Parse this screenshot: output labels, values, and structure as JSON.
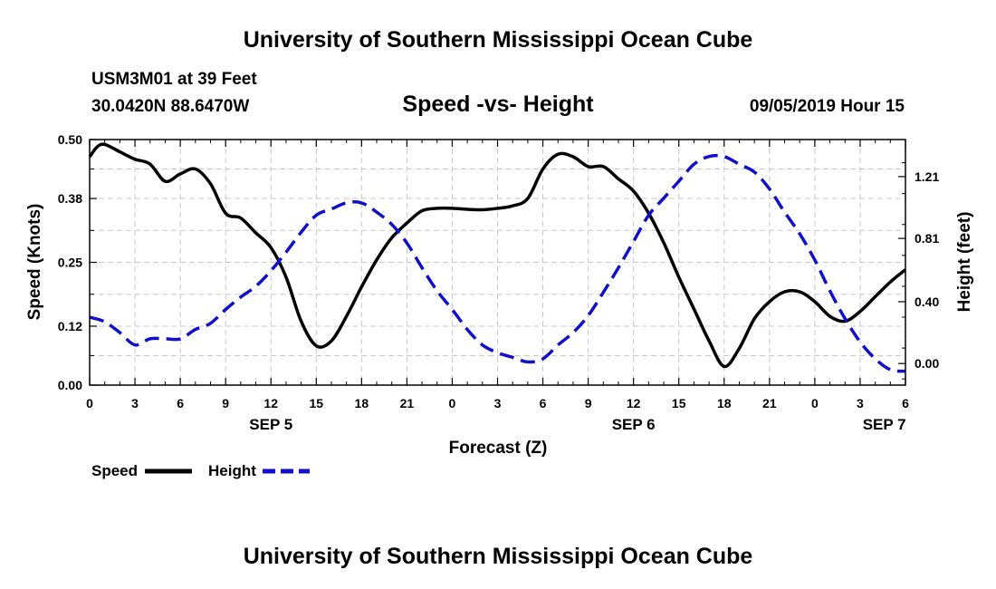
{
  "header": {
    "title": "University of Southern Mississippi Ocean Cube",
    "station": "USM3M01 at 39 Feet",
    "coords": "30.0420N 88.6470W",
    "datetime": "09/05/2019 Hour 15"
  },
  "footer": {
    "title": "University of Southern Mississippi Ocean Cube"
  },
  "colors": {
    "speed": "#000000",
    "height": "#1010c8",
    "grid": "#c8c8c8"
  },
  "chart_data": {
    "type": "line",
    "title": "Speed -vs- Height",
    "xlabel": "Forecast (Z)",
    "ylabel": "Speed (Knots)",
    "y2label": "Height (feet)",
    "xlim": [
      0,
      54
    ],
    "ylim": [
      0,
      0.5
    ],
    "y2lim": [
      -0.14,
      1.45
    ],
    "x_ticks": [
      0,
      3,
      6,
      9,
      12,
      15,
      18,
      21,
      24,
      27,
      30,
      33,
      36,
      39,
      42,
      45,
      48,
      51,
      54
    ],
    "x_tick_labels": [
      "0",
      "3",
      "6",
      "9",
      "12",
      "15",
      "18",
      "21",
      "0",
      "3",
      "6",
      "9",
      "12",
      "15",
      "18",
      "21",
      "0",
      "3",
      "6"
    ],
    "date_labels": [
      {
        "x": 12,
        "label": "SEP 5"
      },
      {
        "x": 36,
        "label": "SEP 6"
      },
      {
        "x": 52.6,
        "label": "SEP 7"
      }
    ],
    "y_ticks": [
      0.0,
      0.12,
      0.25,
      0.38,
      0.5
    ],
    "y_tick_labels": [
      "0.00",
      "0.12",
      "0.25",
      "0.38",
      "0.50"
    ],
    "y2_ticks": [
      0.0,
      0.4,
      0.81,
      1.21
    ],
    "y2_tick_labels": [
      "0.00",
      "0.40",
      "0.81",
      "1.21"
    ],
    "grid": true,
    "legend": {
      "position": "bottom-left",
      "entries": [
        "Speed",
        "Height"
      ]
    },
    "series": [
      {
        "name": "Speed",
        "axis": "left",
        "style": "solid",
        "x": [
          0,
          0.5,
          1,
          2,
          3,
          4,
          5,
          6,
          7,
          8,
          9,
          10,
          11,
          12,
          13,
          14,
          15,
          16,
          17,
          18,
          19,
          20,
          21,
          22,
          23,
          24,
          25,
          26,
          27,
          28,
          29,
          30,
          31,
          32,
          33,
          34,
          35,
          36,
          37,
          38,
          39,
          40,
          41,
          42,
          43,
          44,
          45,
          46,
          47,
          48,
          49,
          50,
          51,
          52,
          53,
          54
        ],
        "values": [
          0.465,
          0.485,
          0.49,
          0.475,
          0.46,
          0.45,
          0.415,
          0.43,
          0.44,
          0.41,
          0.35,
          0.34,
          0.31,
          0.28,
          0.22,
          0.13,
          0.08,
          0.09,
          0.14,
          0.2,
          0.255,
          0.3,
          0.33,
          0.355,
          0.36,
          0.36,
          0.358,
          0.357,
          0.36,
          0.365,
          0.38,
          0.44,
          0.47,
          0.465,
          0.445,
          0.445,
          0.42,
          0.395,
          0.35,
          0.29,
          0.22,
          0.155,
          0.09,
          0.038,
          0.075,
          0.135,
          0.17,
          0.19,
          0.19,
          0.17,
          0.14,
          0.13,
          0.15,
          0.18,
          0.21,
          0.235
        ]
      },
      {
        "name": "Height",
        "axis": "right",
        "style": "dashed",
        "x": [
          0,
          1,
          2,
          3,
          4,
          5,
          6,
          7,
          8,
          9,
          10,
          11,
          12,
          13,
          14,
          15,
          16,
          17,
          18,
          19,
          20,
          21,
          22,
          23,
          24,
          25,
          26,
          27,
          28,
          29,
          30,
          31,
          32,
          33,
          34,
          35,
          36,
          37,
          38,
          39,
          40,
          41,
          42,
          43,
          44,
          45,
          46,
          47,
          48,
          49,
          50,
          51,
          52,
          53,
          54
        ],
        "values": [
          0.3,
          0.27,
          0.2,
          0.12,
          0.16,
          0.16,
          0.16,
          0.22,
          0.26,
          0.35,
          0.43,
          0.5,
          0.6,
          0.72,
          0.85,
          0.96,
          1.0,
          1.04,
          1.04,
          0.98,
          0.9,
          0.78,
          0.62,
          0.47,
          0.35,
          0.22,
          0.12,
          0.07,
          0.04,
          0.01,
          0.03,
          0.12,
          0.2,
          0.31,
          0.46,
          0.62,
          0.79,
          0.96,
          1.07,
          1.18,
          1.29,
          1.34,
          1.34,
          1.29,
          1.24,
          1.13,
          0.98,
          0.84,
          0.67,
          0.47,
          0.29,
          0.14,
          0.03,
          -0.04,
          -0.05
        ]
      }
    ]
  }
}
